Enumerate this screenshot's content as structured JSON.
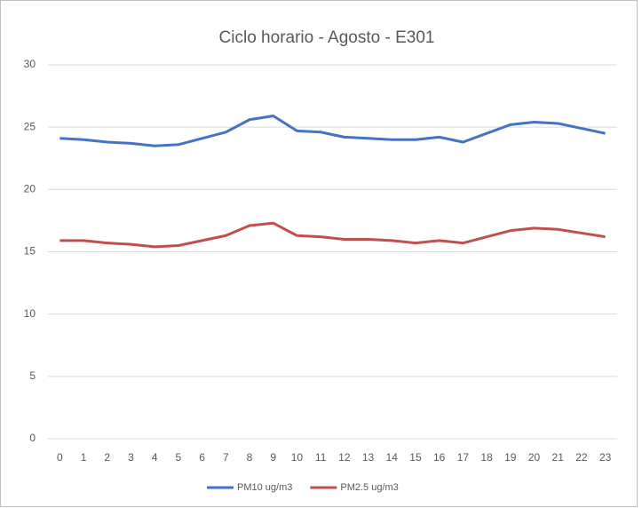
{
  "chart_data": {
    "type": "line",
    "title": "Ciclo horario - Agosto - E301",
    "categories": [
      "0",
      "1",
      "2",
      "3",
      "4",
      "5",
      "6",
      "7",
      "8",
      "9",
      "10",
      "11",
      "12",
      "13",
      "14",
      "15",
      "16",
      "17",
      "18",
      "19",
      "20",
      "21",
      "22",
      "23"
    ],
    "series": [
      {
        "name": "PM10 ug/m3",
        "color": "#4472c4",
        "values": [
          24.1,
          24.0,
          23.8,
          23.7,
          23.5,
          23.6,
          24.1,
          24.6,
          25.6,
          25.9,
          24.7,
          24.6,
          24.2,
          24.1,
          24.0,
          24.0,
          24.2,
          23.8,
          24.5,
          25.2,
          25.4,
          25.3,
          24.9,
          24.5
        ]
      },
      {
        "name": "PM2.5 ug/m3",
        "color": "#c0504d",
        "values": [
          15.9,
          15.9,
          15.7,
          15.6,
          15.4,
          15.5,
          15.9,
          16.3,
          17.1,
          17.3,
          16.3,
          16.2,
          16.0,
          16.0,
          15.9,
          15.7,
          15.9,
          15.7,
          16.2,
          16.7,
          16.9,
          16.8,
          16.5,
          16.2
        ]
      }
    ],
    "ylim": [
      0,
      30
    ],
    "yticks": [
      0,
      5,
      10,
      15,
      20,
      25,
      30
    ],
    "grid": true,
    "legend": "bottom"
  }
}
